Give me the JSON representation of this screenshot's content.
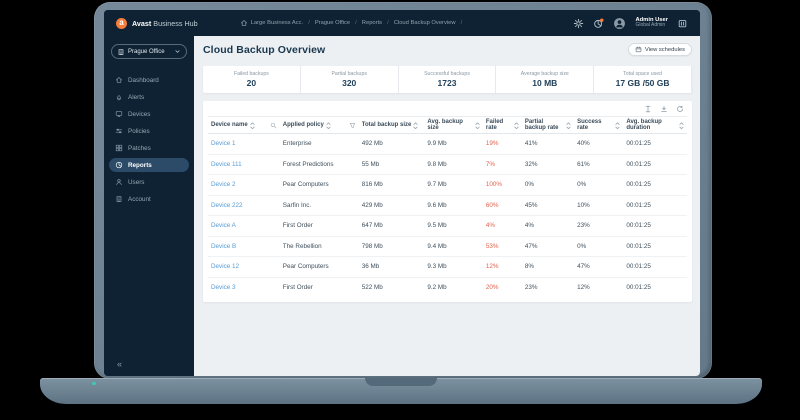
{
  "colors": {
    "navy": "#0e2233",
    "bg": "#edf0f3",
    "orange": "#f47c3c",
    "link": "#569bd5",
    "danger": "#e2614b"
  },
  "brand": {
    "bold": "Avast",
    "rest": " Business Hub",
    "logo_letter": "a"
  },
  "topbar": {
    "breadcrumb": [
      "Large Business Acc.",
      "Prague Office",
      "Reports",
      "Cloud Backup Overview"
    ],
    "user_name": "Admin User",
    "user_role": "Global Admin"
  },
  "sidebar": {
    "org_selector": "Prague Office",
    "collapse_label": "«",
    "items": [
      {
        "label": "Dashboard",
        "icon": "home"
      },
      {
        "label": "Alerts",
        "icon": "bell"
      },
      {
        "label": "Devices",
        "icon": "monitor"
      },
      {
        "label": "Policies",
        "icon": "sliders"
      },
      {
        "label": "Patches",
        "icon": "grid"
      },
      {
        "label": "Reports",
        "icon": "pie",
        "active": true
      },
      {
        "label": "Users",
        "icon": "person"
      },
      {
        "label": "Account",
        "icon": "building"
      }
    ]
  },
  "page": {
    "title": "Cloud Backup Overview",
    "view_schedules_label": "View schedules"
  },
  "stats": [
    {
      "label": "Failed backups",
      "value": "20"
    },
    {
      "label": "Partial backups",
      "value": "320"
    },
    {
      "label": "Successful backups",
      "value": "1723"
    },
    {
      "label": "Average backup size",
      "value": "10 MB"
    },
    {
      "label": "Total space used",
      "value": "17 GB /50 GB"
    }
  ],
  "table": {
    "toolbar_icons": [
      "column-height",
      "download",
      "refresh"
    ],
    "columns": [
      {
        "label": "Device name",
        "sortable": true,
        "extra": "search"
      },
      {
        "label": "Applied policy",
        "sortable": true,
        "extra": "filter"
      },
      {
        "label": "Total backup size",
        "sortable": true
      },
      {
        "label": "Avg. backup size",
        "sortable": true
      },
      {
        "label": "Failed rate",
        "sortable": true
      },
      {
        "label": "Partial backup rate",
        "sortable": true
      },
      {
        "label": "Success rate",
        "sortable": true
      },
      {
        "label": "Avg. backup duration",
        "sortable": true
      }
    ],
    "rows": [
      [
        "Device 1",
        "Enterprise",
        "492 Mb",
        "9.9 Mb",
        "19%",
        "41%",
        "40%",
        "00:01:25"
      ],
      [
        "Device 111",
        "Forest Predictions",
        "55 Mb",
        "9.8 Mb",
        "7%",
        "32%",
        "61%",
        "00:01:25"
      ],
      [
        "Device 2",
        "Pear Computers",
        "816 Mb",
        "9.7 Mb",
        "100%",
        "0%",
        "0%",
        "00:01:25"
      ],
      [
        "Device 222",
        "Sarfin Inc.",
        "429 Mb",
        "9.6 Mb",
        "60%",
        "45%",
        "10%",
        "00:01:25"
      ],
      [
        "Device A",
        "First Order",
        "647 Mb",
        "9.5 Mb",
        "4%",
        "4%",
        "23%",
        "00:01:25"
      ],
      [
        "Device B",
        "The Rebellion",
        "798 Mb",
        "9.4 Mb",
        "53%",
        "47%",
        "0%",
        "00:01:25"
      ],
      [
        "Device 12",
        "Pear Computers",
        "36 Mb",
        "9.3 Mb",
        "12%",
        "8%",
        "47%",
        "00:01:25"
      ],
      [
        "Device 3",
        "First Order",
        "522 Mb",
        "9.2 Mb",
        "20%",
        "23%",
        "12%",
        "00:01:25"
      ]
    ]
  }
}
